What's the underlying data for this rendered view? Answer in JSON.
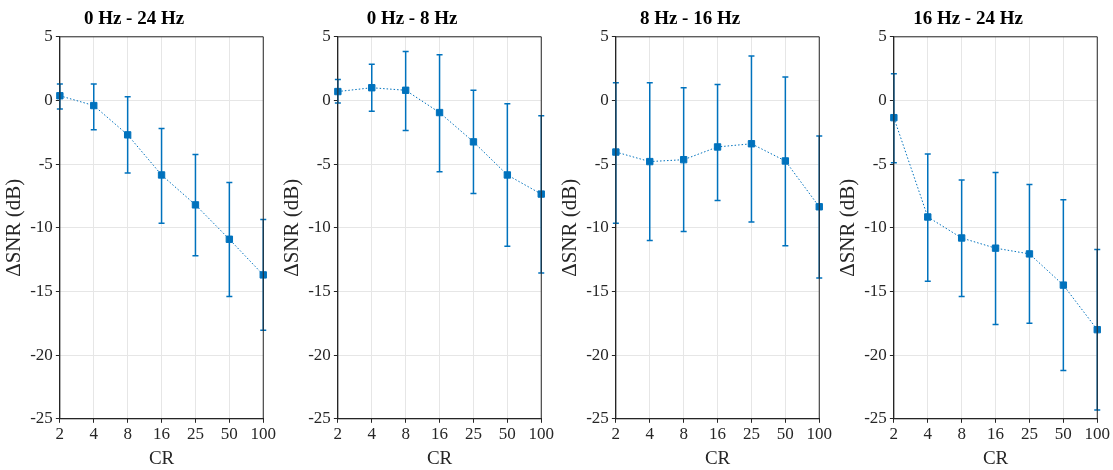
{
  "chart_data": [
    {
      "type": "line",
      "title": "0 Hz - 24 Hz",
      "xlabel": "CR",
      "ylabel": "ΔSNR (dB)",
      "categories": [
        "2",
        "4",
        "8",
        "16",
        "25",
        "50",
        "100"
      ],
      "ylim": [
        -25,
        5
      ],
      "yticks": [
        -25,
        -20,
        -15,
        -10,
        -5,
        0,
        5
      ],
      "grid": true,
      "marker": "square",
      "line_style": "dotted",
      "legend": false,
      "series": [
        {
          "color": "#0072bd",
          "values": [
            0.37,
            -0.4,
            -2.7,
            -5.85,
            -8.2,
            -10.9,
            -13.7
          ],
          "errors": [
            [
              -0.67,
              1.3
            ],
            [
              -2.3,
              1.3
            ],
            [
              -5.7,
              0.3
            ],
            [
              -9.65,
              -2.2
            ],
            [
              -12.2,
              -4.25
            ],
            [
              -15.4,
              -6.45
            ],
            [
              -18.05,
              -9.35
            ]
          ]
        }
      ]
    },
    {
      "type": "line",
      "title": "0 Hz - 8 Hz",
      "xlabel": "CR",
      "ylabel": "ΔSNR (dB)",
      "categories": [
        "2",
        "4",
        "8",
        "16",
        "25",
        "50",
        "100"
      ],
      "ylim": [
        -25,
        5
      ],
      "yticks": [
        -25,
        -20,
        -15,
        -10,
        -5,
        0,
        5
      ],
      "grid": true,
      "marker": "square",
      "line_style": "dotted",
      "legend": false,
      "series": [
        {
          "color": "#0072bd",
          "values": [
            0.7,
            1.0,
            0.8,
            -0.95,
            -3.25,
            -5.85,
            -7.35
          ],
          "errors": [
            [
              -0.2,
              1.65
            ],
            [
              -0.85,
              2.85
            ],
            [
              -2.35,
              3.85
            ],
            [
              -5.6,
              3.6
            ],
            [
              -7.3,
              0.8
            ],
            [
              -11.45,
              -0.25
            ],
            [
              -13.55,
              -1.2
            ]
          ]
        }
      ]
    },
    {
      "type": "line",
      "title": "8 Hz - 16 Hz",
      "xlabel": "CR",
      "ylabel": "ΔSNR (dB)",
      "categories": [
        "2",
        "4",
        "8",
        "16",
        "25",
        "50",
        "100"
      ],
      "ylim": [
        -25,
        5
      ],
      "yticks": [
        -25,
        -20,
        -15,
        -10,
        -5,
        0,
        5
      ],
      "grid": true,
      "marker": "square",
      "line_style": "dotted",
      "legend": false,
      "series": [
        {
          "color": "#0072bd",
          "values": [
            -4.05,
            -4.8,
            -4.65,
            -3.65,
            -3.4,
            -4.75,
            -8.35
          ],
          "errors": [
            [
              -9.65,
              1.4
            ],
            [
              -11.0,
              1.4
            ],
            [
              -10.3,
              1.0
            ],
            [
              -7.85,
              1.25
            ],
            [
              -9.55,
              3.5
            ],
            [
              -11.4,
              1.85
            ],
            [
              -13.95,
              -2.8
            ]
          ]
        }
      ]
    },
    {
      "type": "line",
      "title": "16 Hz - 24 Hz",
      "xlabel": "CR",
      "ylabel": "ΔSNR (dB)",
      "categories": [
        "2",
        "4",
        "8",
        "16",
        "25",
        "50",
        "100"
      ],
      "ylim": [
        -25,
        5
      ],
      "yticks": [
        -25,
        -20,
        -15,
        -10,
        -5,
        0,
        5
      ],
      "grid": true,
      "marker": "square",
      "line_style": "dotted",
      "legend": false,
      "series": [
        {
          "color": "#0072bd",
          "values": [
            -1.35,
            -9.15,
            -10.8,
            -11.6,
            -12.05,
            -14.5,
            -18.0
          ],
          "errors": [
            [
              -4.9,
              2.1
            ],
            [
              -14.2,
              -4.2
            ],
            [
              -15.4,
              -6.25
            ],
            [
              -17.6,
              -5.65
            ],
            [
              -17.5,
              -6.6
            ],
            [
              -21.2,
              -7.8
            ],
            [
              -24.3,
              -11.7
            ]
          ]
        }
      ]
    }
  ]
}
